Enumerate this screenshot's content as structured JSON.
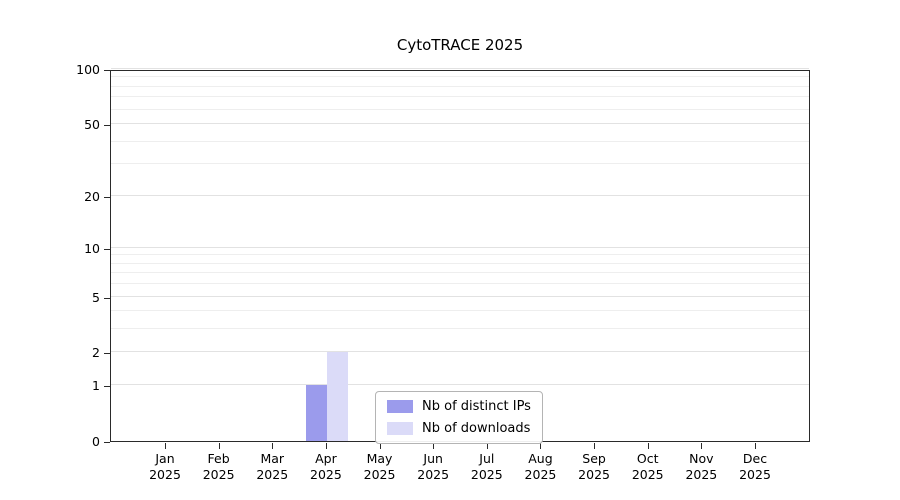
{
  "title": "CytoTRACE 2025",
  "chart_data": {
    "type": "bar",
    "title": "CytoTRACE 2025",
    "x_categories": [
      {
        "month": "Jan",
        "year": "2025"
      },
      {
        "month": "Feb",
        "year": "2025"
      },
      {
        "month": "Mar",
        "year": "2025"
      },
      {
        "month": "Apr",
        "year": "2025"
      },
      {
        "month": "May",
        "year": "2025"
      },
      {
        "month": "Jun",
        "year": "2025"
      },
      {
        "month": "Jul",
        "year": "2025"
      },
      {
        "month": "Aug",
        "year": "2025"
      },
      {
        "month": "Sep",
        "year": "2025"
      },
      {
        "month": "Oct",
        "year": "2025"
      },
      {
        "month": "Nov",
        "year": "2025"
      },
      {
        "month": "Dec",
        "year": "2025"
      }
    ],
    "series": [
      {
        "name": "Nb of distinct IPs",
        "color": "#9b9bec",
        "values": [
          0,
          0,
          0,
          1,
          0,
          0,
          0,
          0,
          0,
          0,
          0,
          0
        ]
      },
      {
        "name": "Nb of downloads",
        "color": "#dbdbf8",
        "values": [
          0,
          0,
          0,
          2,
          0,
          0,
          0,
          0,
          0,
          0,
          0,
          0
        ]
      }
    ],
    "yscale": "log1p",
    "ylim": [
      0,
      100
    ],
    "yticks": [
      0,
      1,
      2,
      5,
      10,
      20,
      50,
      100
    ],
    "minor_gridlines": [
      1,
      2,
      3,
      4,
      5,
      6,
      7,
      8,
      9,
      10,
      20,
      30,
      40,
      50,
      60,
      70,
      80,
      90,
      100
    ],
    "grid": true,
    "legend_position": "lower center"
  }
}
